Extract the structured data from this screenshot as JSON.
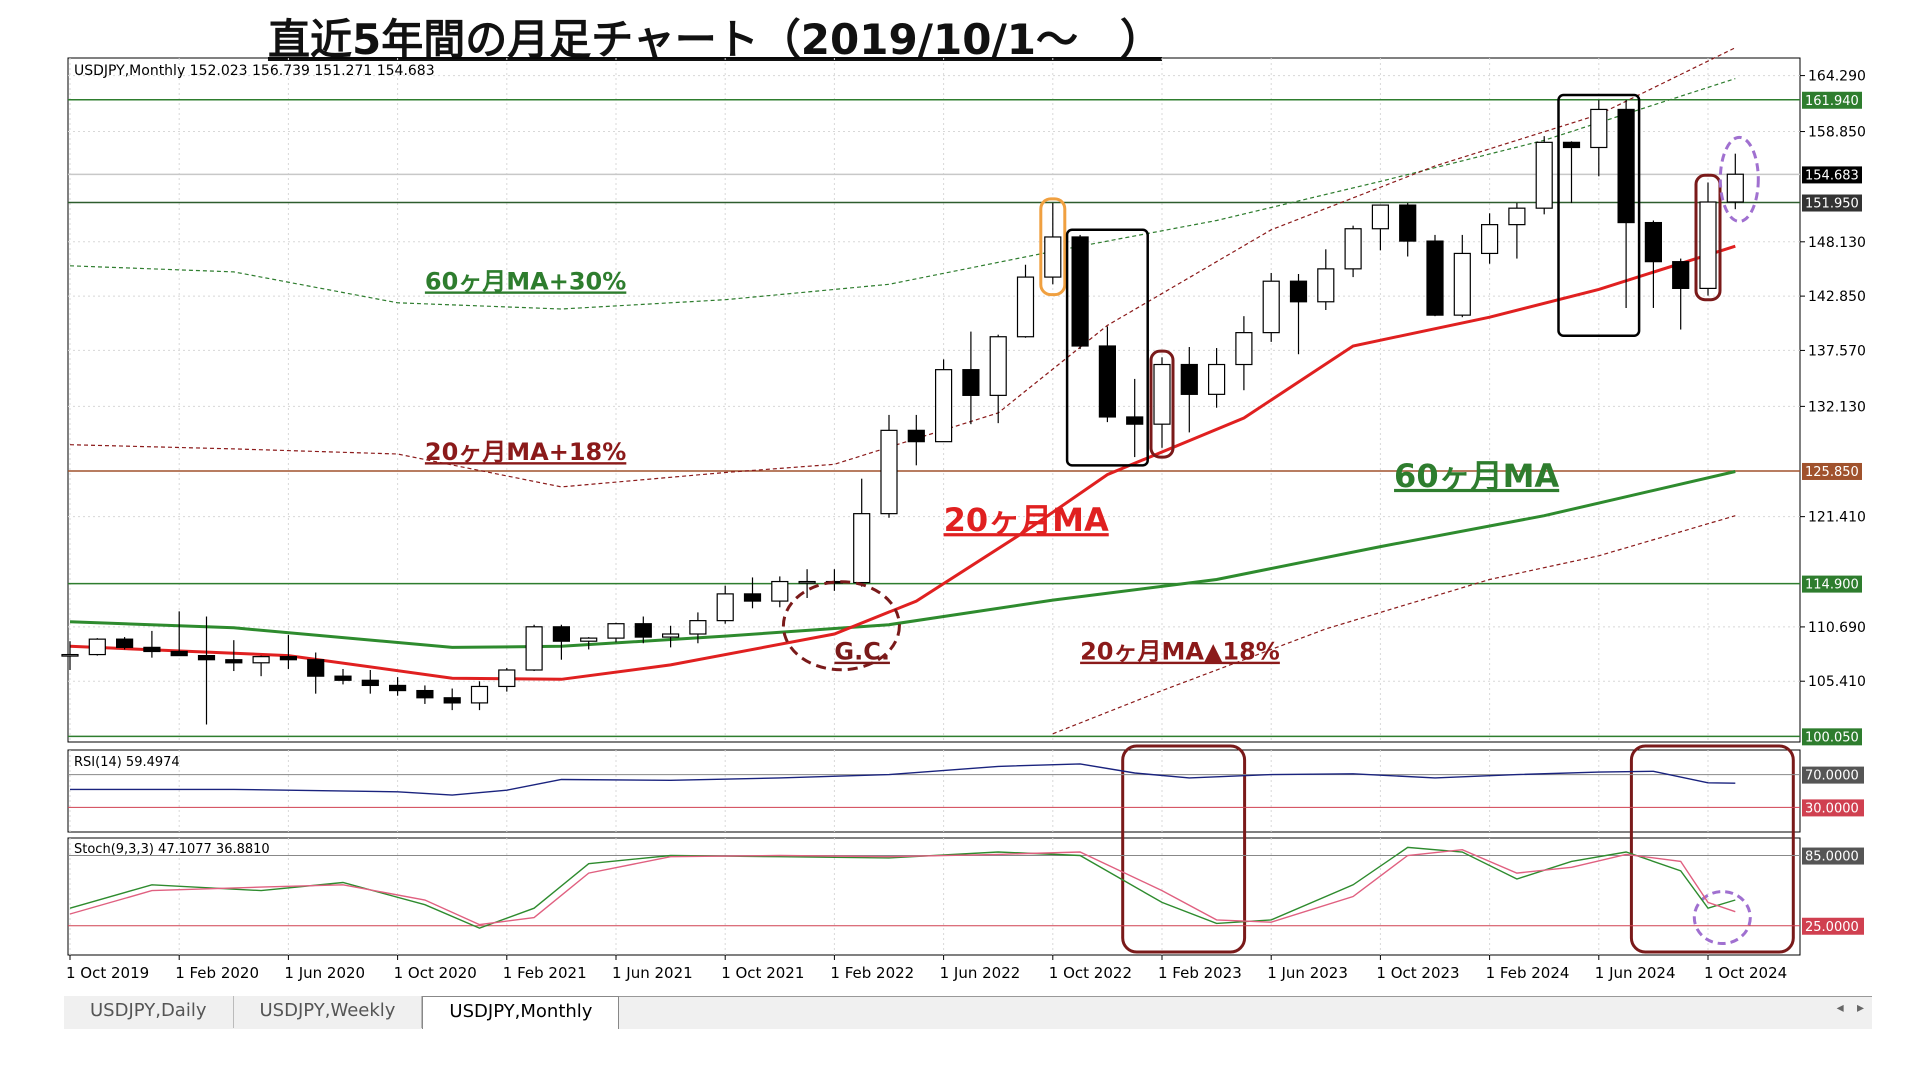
{
  "title": "直近5年間の月足チャート（2019/10/1～　）",
  "header_text": "USDJPY,Monthly  152.023 156.739 151.271 154.683",
  "rsi_label": "RSI(14) 59.4974",
  "stoch_label": "Stoch(9,3,3) 47.1077 36.8810",
  "tabs": [
    "USDJPY,Daily",
    "USDJPY,Weekly",
    "USDJPY,Monthly"
  ],
  "active_tab": 2,
  "colors": {
    "up_fill": "#ffffff",
    "down_fill": "#000000",
    "ma20": "#e02020",
    "ma60": "#2e8b2e",
    "env20": "#8b1a1a",
    "env60": "#2e7d2e",
    "annotation": "#7a1a1a"
  },
  "chart_data": {
    "type": "candlestick",
    "symbol": "USDJPY",
    "timeframe": "Monthly",
    "x_tick_labels": [
      "1 Oct 2019",
      "1 Feb 2020",
      "1 Jun 2020",
      "1 Oct 2020",
      "1 Feb 2021",
      "1 Jun 2021",
      "1 Oct 2021",
      "1 Feb 2022",
      "1 Jun 2022",
      "1 Oct 2022",
      "1 Feb 2023",
      "1 Jun 2023",
      "1 Oct 2023",
      "1 Feb 2024",
      "1 Jun 2024",
      "1 Oct 2024"
    ],
    "y_tick_labels": [
      "164.290",
      "158.850",
      "148.130",
      "142.850",
      "137.570",
      "132.130",
      "121.410",
      "110.690",
      "105.410"
    ],
    "ylim": [
      99.5,
      166.0
    ],
    "price_labels": [
      {
        "text": "161.940",
        "value": 161.94,
        "bg": "#2e7d2e",
        "line": "#2e7d2e"
      },
      {
        "text": "154.683",
        "value": 154.683,
        "bg": "#000000",
        "line": "#c8c8c8"
      },
      {
        "text": "151.950",
        "value": 151.95,
        "bg": "#333333",
        "line": "#2e5d2e"
      },
      {
        "text": "125.850",
        "value": 125.85,
        "bg": "#a0522d",
        "line": "#a0522d"
      },
      {
        "text": "114.900",
        "value": 114.9,
        "bg": "#2e7d2e",
        "line": "#2e7d2e"
      },
      {
        "text": "100.050",
        "value": 100.05,
        "bg": "#2e7d2e",
        "line": "#2e7d2e"
      }
    ],
    "candles": [
      {
        "o": 107.9,
        "h": 109.3,
        "l": 106.5,
        "c": 108.0
      },
      {
        "o": 108.0,
        "h": 109.6,
        "l": 107.9,
        "c": 109.5
      },
      {
        "o": 109.5,
        "h": 109.7,
        "l": 108.5,
        "c": 108.7
      },
      {
        "o": 108.7,
        "h": 110.3,
        "l": 107.7,
        "c": 108.3
      },
      {
        "o": 108.3,
        "h": 112.2,
        "l": 107.9,
        "c": 107.9
      },
      {
        "o": 107.9,
        "h": 111.7,
        "l": 101.2,
        "c": 107.5
      },
      {
        "o": 107.5,
        "h": 109.4,
        "l": 106.4,
        "c": 107.2
      },
      {
        "o": 107.2,
        "h": 107.9,
        "l": 105.9,
        "c": 107.8
      },
      {
        "o": 107.8,
        "h": 109.9,
        "l": 106.6,
        "c": 107.5
      },
      {
        "o": 107.5,
        "h": 108.2,
        "l": 104.2,
        "c": 105.9
      },
      {
        "o": 105.9,
        "h": 106.6,
        "l": 105.1,
        "c": 105.5
      },
      {
        "o": 105.5,
        "h": 106.5,
        "l": 104.2,
        "c": 105.0
      },
      {
        "o": 105.0,
        "h": 105.8,
        "l": 104.0,
        "c": 104.5
      },
      {
        "o": 104.5,
        "h": 105.0,
        "l": 103.2,
        "c": 103.8
      },
      {
        "o": 103.8,
        "h": 104.7,
        "l": 102.6,
        "c": 103.3
      },
      {
        "o": 103.3,
        "h": 105.4,
        "l": 102.6,
        "c": 104.9
      },
      {
        "o": 104.9,
        "h": 106.7,
        "l": 104.4,
        "c": 106.5
      },
      {
        "o": 106.5,
        "h": 110.9,
        "l": 106.4,
        "c": 110.7
      },
      {
        "o": 110.7,
        "h": 110.9,
        "l": 107.5,
        "c": 109.3
      },
      {
        "o": 109.3,
        "h": 109.7,
        "l": 108.5,
        "c": 109.6
      },
      {
        "o": 109.6,
        "h": 111.1,
        "l": 109.2,
        "c": 111.0
      },
      {
        "o": 111.0,
        "h": 111.7,
        "l": 109.1,
        "c": 109.7
      },
      {
        "o": 109.7,
        "h": 110.8,
        "l": 108.7,
        "c": 110.0
      },
      {
        "o": 110.0,
        "h": 112.1,
        "l": 109.1,
        "c": 111.3
      },
      {
        "o": 111.3,
        "h": 114.7,
        "l": 111.0,
        "c": 113.9
      },
      {
        "o": 113.9,
        "h": 115.5,
        "l": 112.5,
        "c": 113.2
      },
      {
        "o": 113.2,
        "h": 115.6,
        "l": 112.6,
        "c": 115.1
      },
      {
        "o": 115.1,
        "h": 116.3,
        "l": 113.5,
        "c": 115.1
      },
      {
        "o": 115.1,
        "h": 116.3,
        "l": 114.2,
        "c": 115.0
      },
      {
        "o": 115.0,
        "h": 125.1,
        "l": 114.6,
        "c": 121.7
      },
      {
        "o": 121.7,
        "h": 131.3,
        "l": 121.3,
        "c": 129.8
      },
      {
        "o": 129.8,
        "h": 131.3,
        "l": 126.4,
        "c": 128.7
      },
      {
        "o": 128.7,
        "h": 136.7,
        "l": 128.7,
        "c": 135.7
      },
      {
        "o": 135.7,
        "h": 139.4,
        "l": 130.4,
        "c": 133.2
      },
      {
        "o": 133.2,
        "h": 139.1,
        "l": 130.5,
        "c": 138.9
      },
      {
        "o": 138.9,
        "h": 145.9,
        "l": 138.8,
        "c": 144.7
      },
      {
        "o": 144.7,
        "h": 151.9,
        "l": 144.0,
        "c": 148.6
      },
      {
        "o": 148.6,
        "h": 148.8,
        "l": 137.7,
        "c": 138.0
      },
      {
        "o": 138.0,
        "h": 139.9,
        "l": 130.6,
        "c": 131.1
      },
      {
        "o": 131.1,
        "h": 134.8,
        "l": 127.2,
        "c": 130.4
      },
      {
        "o": 130.4,
        "h": 136.9,
        "l": 128.1,
        "c": 136.2
      },
      {
        "o": 136.2,
        "h": 137.9,
        "l": 129.6,
        "c": 133.3
      },
      {
        "o": 133.3,
        "h": 137.8,
        "l": 132.0,
        "c": 136.2
      },
      {
        "o": 136.2,
        "h": 140.9,
        "l": 133.7,
        "c": 139.3
      },
      {
        "o": 139.3,
        "h": 145.1,
        "l": 138.4,
        "c": 144.3
      },
      {
        "o": 144.3,
        "h": 145.0,
        "l": 137.2,
        "c": 142.3
      },
      {
        "o": 142.3,
        "h": 147.4,
        "l": 141.5,
        "c": 145.5
      },
      {
        "o": 145.5,
        "h": 149.7,
        "l": 144.7,
        "c": 149.4
      },
      {
        "o": 149.4,
        "h": 151.7,
        "l": 147.3,
        "c": 151.7
      },
      {
        "o": 151.7,
        "h": 151.9,
        "l": 146.7,
        "c": 148.2
      },
      {
        "o": 148.2,
        "h": 148.8,
        "l": 140.9,
        "c": 141.0
      },
      {
        "o": 141.0,
        "h": 148.8,
        "l": 140.8,
        "c": 147.0
      },
      {
        "o": 147.0,
        "h": 150.9,
        "l": 146.0,
        "c": 149.8
      },
      {
        "o": 149.8,
        "h": 151.9,
        "l": 146.5,
        "c": 151.4
      },
      {
        "o": 151.4,
        "h": 158.4,
        "l": 150.8,
        "c": 157.8
      },
      {
        "o": 157.8,
        "h": 157.9,
        "l": 151.9,
        "c": 157.3
      },
      {
        "o": 157.3,
        "h": 161.9,
        "l": 154.5,
        "c": 161.0
      },
      {
        "o": 161.0,
        "h": 161.9,
        "l": 141.7,
        "c": 150.0
      },
      {
        "o": 150.0,
        "h": 150.2,
        "l": 141.7,
        "c": 146.2
      },
      {
        "o": 146.2,
        "h": 146.5,
        "l": 139.6,
        "c": 143.6
      },
      {
        "o": 143.6,
        "h": 153.9,
        "l": 142.9,
        "c": 152.0
      },
      {
        "o": 152.0,
        "h": 156.7,
        "l": 151.3,
        "c": 154.7
      }
    ],
    "ma20": [
      [
        0,
        108.8
      ],
      [
        8,
        107.9
      ],
      [
        14,
        105.7
      ],
      [
        18,
        105.6
      ],
      [
        22,
        107.0
      ],
      [
        28,
        110.0
      ],
      [
        31,
        113.2
      ],
      [
        35,
        120.0
      ],
      [
        38,
        125.5
      ],
      [
        43,
        131.0
      ],
      [
        47,
        138.0
      ],
      [
        52,
        140.8
      ],
      [
        56,
        143.5
      ],
      [
        61,
        147.7
      ]
    ],
    "ma60": [
      [
        0,
        111.2
      ],
      [
        6,
        110.6
      ],
      [
        14,
        108.7
      ],
      [
        18,
        108.8
      ],
      [
        24,
        109.8
      ],
      [
        30,
        110.9
      ],
      [
        36,
        113.3
      ],
      [
        42,
        115.3
      ],
      [
        48,
        118.5
      ],
      [
        54,
        121.5
      ],
      [
        61,
        125.8
      ]
    ],
    "ma20_plus18": [
      [
        0,
        128.4
      ],
      [
        6,
        128.0
      ],
      [
        12,
        127.5
      ],
      [
        18,
        124.3
      ],
      [
        24,
        125.7
      ],
      [
        28,
        126.5
      ],
      [
        34,
        131.5
      ],
      [
        38,
        140.0
      ],
      [
        44,
        149.3
      ],
      [
        50,
        155.5
      ],
      [
        56,
        160.5
      ],
      [
        61,
        167.0
      ]
    ],
    "ma20_minus18": [
      [
        36,
        100.3
      ],
      [
        40,
        104.5
      ],
      [
        46,
        110.5
      ],
      [
        52,
        115.3
      ],
      [
        56,
        117.6
      ],
      [
        61,
        121.5
      ]
    ],
    "ma60_plus30": [
      [
        0,
        145.8
      ],
      [
        6,
        145.2
      ],
      [
        12,
        142.2
      ],
      [
        18,
        141.6
      ],
      [
        24,
        142.5
      ],
      [
        30,
        144.0
      ],
      [
        36,
        147.2
      ],
      [
        42,
        150.2
      ],
      [
        48,
        154.0
      ],
      [
        54,
        158.0
      ],
      [
        61,
        164.0
      ]
    ],
    "rsi": {
      "levels": [
        70,
        30
      ],
      "values": [
        [
          0,
          52
        ],
        [
          6,
          52
        ],
        [
          12,
          49
        ],
        [
          14,
          45
        ],
        [
          16,
          51
        ],
        [
          18,
          64
        ],
        [
          22,
          63
        ],
        [
          26,
          66
        ],
        [
          30,
          70
        ],
        [
          34,
          80
        ],
        [
          37,
          83
        ],
        [
          39,
          72
        ],
        [
          41,
          66
        ],
        [
          44,
          70
        ],
        [
          47,
          71
        ],
        [
          50,
          66
        ],
        [
          53,
          70
        ],
        [
          56,
          73
        ],
        [
          58,
          74
        ],
        [
          60,
          60
        ],
        [
          61,
          59.5
        ]
      ]
    },
    "stoch": {
      "levels": [
        85,
        25
      ],
      "k": [
        [
          0,
          40
        ],
        [
          3,
          60
        ],
        [
          7,
          55
        ],
        [
          10,
          62
        ],
        [
          13,
          43
        ],
        [
          15,
          23
        ],
        [
          17,
          40
        ],
        [
          19,
          78
        ],
        [
          22,
          85
        ],
        [
          26,
          84
        ],
        [
          30,
          83
        ],
        [
          34,
          88
        ],
        [
          37,
          85
        ],
        [
          40,
          45
        ],
        [
          42,
          27
        ],
        [
          44,
          30
        ],
        [
          47,
          60
        ],
        [
          49,
          92
        ],
        [
          51,
          88
        ],
        [
          53,
          65
        ],
        [
          55,
          80
        ],
        [
          57,
          88
        ],
        [
          59,
          72
        ],
        [
          60,
          40
        ],
        [
          61,
          47
        ]
      ],
      "d": [
        [
          0,
          35
        ],
        [
          3,
          55
        ],
        [
          7,
          58
        ],
        [
          10,
          60
        ],
        [
          13,
          47
        ],
        [
          15,
          26
        ],
        [
          17,
          32
        ],
        [
          19,
          70
        ],
        [
          22,
          84
        ],
        [
          26,
          85
        ],
        [
          30,
          84
        ],
        [
          34,
          86
        ],
        [
          37,
          88
        ],
        [
          40,
          55
        ],
        [
          42,
          30
        ],
        [
          44,
          28
        ],
        [
          47,
          50
        ],
        [
          49,
          85
        ],
        [
          51,
          90
        ],
        [
          53,
          70
        ],
        [
          55,
          75
        ],
        [
          57,
          86
        ],
        [
          59,
          80
        ],
        [
          60,
          45
        ],
        [
          61,
          37
        ]
      ]
    },
    "annotations": [
      {
        "text": "60ヶ月MA+30%",
        "color": "#2e7d2e",
        "x": 13,
        "y": 143.5
      },
      {
        "text": "20ヶ月MA+18%",
        "color": "#8b1a1a",
        "x": 13,
        "y": 126.9
      },
      {
        "text": "20ヶ月MA",
        "color": "#e02020",
        "x": 32,
        "y": 120.0
      },
      {
        "text": "60ヶ月MA",
        "color": "#2e7d2e",
        "x": 48.5,
        "y": 124.3
      },
      {
        "text": "G.C.",
        "color": "#7a1a1a",
        "x": 28,
        "y": 107.5
      },
      {
        "text": "20ヶ月MA▲18%",
        "color": "#8b1a1a",
        "x": 37,
        "y": 107.5
      }
    ]
  }
}
